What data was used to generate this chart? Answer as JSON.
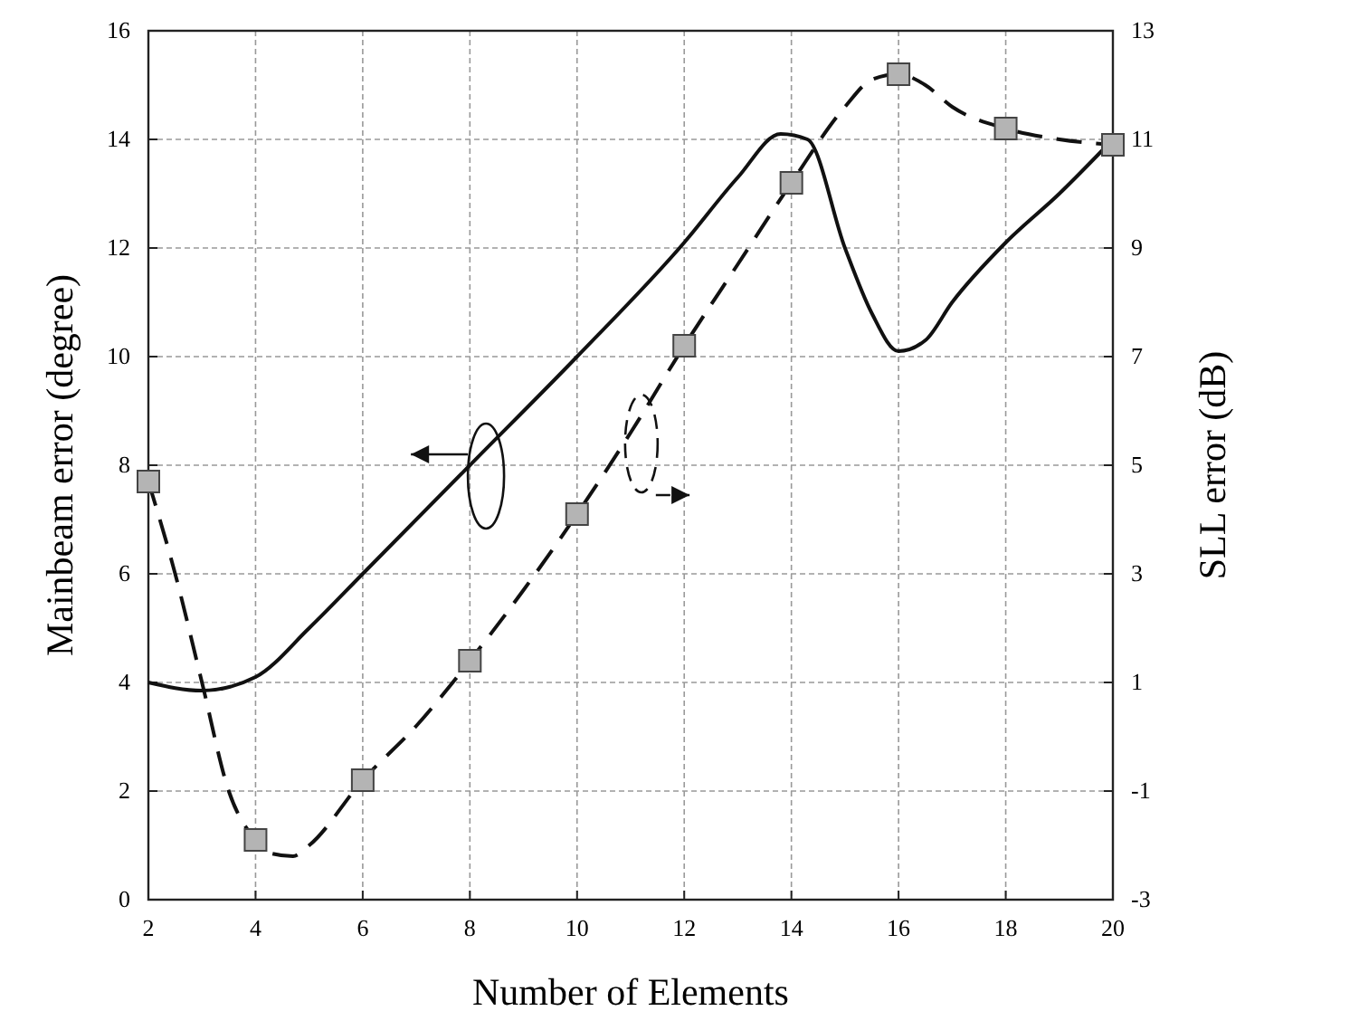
{
  "chart_data": {
    "type": "line",
    "xlabel": "Number of Elements",
    "ylabel": "Mainbeam error (degree)",
    "y2label": "SLL error (dB)",
    "xlim": [
      2,
      20
    ],
    "xticks": [
      2,
      4,
      6,
      8,
      10,
      12,
      14,
      16,
      18,
      20
    ],
    "ylim": [
      0,
      16
    ],
    "yticks": [
      0,
      2,
      4,
      6,
      8,
      10,
      12,
      14,
      16
    ],
    "y2lim": [
      -3,
      13
    ],
    "y2ticks": [
      -3,
      -1,
      1,
      3,
      5,
      7,
      9,
      11,
      13
    ],
    "grid": true,
    "series": [
      {
        "type": "line",
        "color": "#111111",
        "line_style": "solid",
        "marker": "none",
        "x": [
          2,
          3,
          4,
          5,
          6,
          8,
          10,
          12,
          13,
          13.8,
          14.3,
          15,
          15.5,
          16,
          16.5,
          17,
          18,
          19,
          20
        ],
        "values": [
          4,
          3.85,
          4.1,
          5,
          6,
          8,
          10,
          12.1,
          13.3,
          14.1,
          14,
          12,
          10.8,
          10.1,
          10.3,
          11,
          12.1,
          13,
          14
        ]
      },
      {
        "type": "line",
        "color": "#111111",
        "axis": "y2",
        "line_style": "dashed",
        "marker": "none",
        "x": [
          2,
          2.5,
          3,
          3.5,
          4,
          4.3,
          4.7,
          5,
          6,
          7,
          8,
          9,
          10,
          11,
          12,
          13,
          14,
          15,
          15.5,
          16,
          16.5,
          17,
          18,
          19,
          20
        ],
        "values": [
          4.7,
          3,
          1,
          -1,
          -1.9,
          -2.15,
          -2.2,
          -2,
          -0.8,
          0.2,
          1.4,
          2.7,
          4.1,
          5.6,
          7.2,
          8.7,
          10.2,
          11.6,
          12.1,
          12.2,
          12,
          11.6,
          11.2,
          11,
          10.9
        ]
      },
      {
        "type": "scatter",
        "color": "#b4b4b4",
        "axis": "y2",
        "marker": "square",
        "x": [
          2,
          4,
          6,
          8,
          10,
          12,
          14,
          16,
          18,
          20
        ],
        "values": [
          4.7,
          -1.9,
          -0.8,
          1.4,
          4.1,
          7.2,
          10.2,
          12.2,
          11.2,
          10.9
        ]
      }
    ]
  }
}
